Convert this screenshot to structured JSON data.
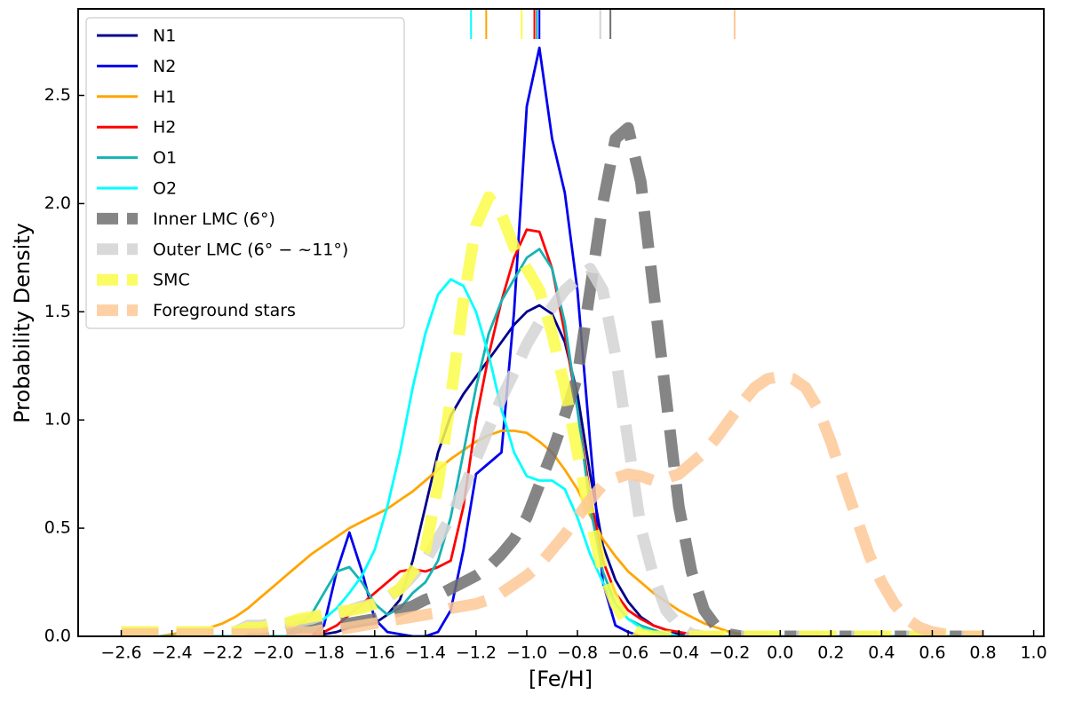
{
  "chart_data": {
    "type": "line",
    "xlabel": "[Fe/H]",
    "ylabel": "Probability Density",
    "xlim": [
      -2.77,
      1.04
    ],
    "ylim": [
      0,
      2.9
    ],
    "xticks": [
      {
        "value": -2.6,
        "label": "−2.6"
      },
      {
        "value": -2.4,
        "label": "−2.4"
      },
      {
        "value": -2.2,
        "label": "−2.2"
      },
      {
        "value": -2.0,
        "label": "−2.0"
      },
      {
        "value": -1.8,
        "label": "−1.8"
      },
      {
        "value": -1.6,
        "label": "−1.6"
      },
      {
        "value": -1.4,
        "label": "−1.4"
      },
      {
        "value": -1.2,
        "label": "−1.2"
      },
      {
        "value": -1.0,
        "label": "−1.0"
      },
      {
        "value": -0.8,
        "label": "−0.8"
      },
      {
        "value": -0.6,
        "label": "−0.6"
      },
      {
        "value": -0.4,
        "label": "−0.4"
      },
      {
        "value": -0.2,
        "label": "−0.2"
      },
      {
        "value": 0,
        "label": "0.0"
      },
      0.2,
      0.4,
      0.6,
      0.8,
      {
        "value": 1,
        "label": "1.0"
      }
    ],
    "yticks": [
      {
        "value": 0,
        "label": "0.0"
      },
      0.5,
      {
        "value": 1,
        "label": "1.0"
      },
      1.5,
      {
        "value": 2,
        "label": "2.0"
      },
      2.5
    ],
    "legend": "upper left",
    "x": [
      -2.6,
      -2.55,
      -2.5,
      -2.45,
      -2.4,
      -2.35,
      -2.3,
      -2.25,
      -2.2,
      -2.15,
      -2.1,
      -2.05,
      -2.0,
      -1.95,
      -1.9,
      -1.85,
      -1.8,
      -1.75,
      -1.7,
      -1.65,
      -1.6,
      -1.55,
      -1.5,
      -1.45,
      -1.4,
      -1.35,
      -1.3,
      -1.25,
      -1.2,
      -1.15,
      -1.1,
      -1.05,
      -1.0,
      -0.95,
      -0.9,
      -0.85,
      -0.8,
      -0.75,
      -0.7,
      -0.65,
      -0.6,
      -0.55,
      -0.5,
      -0.45,
      -0.4,
      -0.35,
      -0.3,
      -0.25,
      -0.2,
      -0.15,
      -0.1,
      -0.05,
      0,
      0.05,
      0.1,
      0.15,
      0.2,
      0.25,
      0.3,
      0.35,
      0.4,
      0.45,
      0.5,
      0.55,
      0.6,
      0.65,
      0.7,
      0.75,
      0.8
    ],
    "series": [
      {
        "name": "N1",
        "color": "#00008b",
        "style": "solid",
        "mean": -0.96,
        "values": [
          0,
          0,
          0,
          0,
          0,
          0,
          0,
          0,
          0,
          0,
          0,
          0,
          0,
          0,
          0,
          0,
          0.01,
          0.02,
          0.04,
          0.05,
          0.06,
          0.1,
          0.17,
          0.35,
          0.6,
          0.85,
          1.02,
          1.12,
          1.2,
          1.28,
          1.36,
          1.44,
          1.5,
          1.53,
          1.49,
          1.36,
          1.12,
          0.75,
          0.42,
          0.26,
          0.16,
          0.09,
          0.05,
          0.03,
          0.01,
          0,
          0,
          0,
          0,
          0,
          0,
          0,
          0,
          0,
          0,
          0,
          0,
          0,
          0,
          0,
          0,
          0,
          0,
          0,
          0,
          0,
          0,
          0,
          0
        ]
      },
      {
        "name": "N2",
        "color": "#0000ee",
        "style": "solid",
        "mean": -0.95,
        "values": [
          0,
          0,
          0,
          0,
          0,
          0,
          0,
          0,
          0,
          0,
          0,
          0,
          0,
          0,
          0,
          0,
          0.05,
          0.3,
          0.48,
          0.3,
          0.08,
          0.02,
          0.01,
          0,
          0,
          0.02,
          0.12,
          0.4,
          0.75,
          0.8,
          0.85,
          1.5,
          2.45,
          2.72,
          2.3,
          2.05,
          1.6,
          0.9,
          0.25,
          0.05,
          0.02,
          0,
          0,
          0,
          0,
          0,
          0,
          0,
          0,
          0,
          0,
          0,
          0,
          0,
          0,
          0,
          0,
          0,
          0,
          0,
          0,
          0,
          0,
          0,
          0,
          0,
          0,
          0,
          0
        ]
      },
      {
        "name": "H1",
        "color": "#ffa500",
        "style": "solid",
        "mean": -1.16,
        "values": [
          0,
          0,
          0,
          0,
          0.01,
          0.02,
          0.03,
          0.04,
          0.06,
          0.09,
          0.13,
          0.18,
          0.23,
          0.28,
          0.33,
          0.38,
          0.42,
          0.46,
          0.5,
          0.53,
          0.56,
          0.59,
          0.63,
          0.67,
          0.72,
          0.77,
          0.82,
          0.86,
          0.9,
          0.93,
          0.95,
          0.95,
          0.94,
          0.9,
          0.85,
          0.77,
          0.68,
          0.56,
          0.45,
          0.37,
          0.3,
          0.25,
          0.2,
          0.16,
          0.12,
          0.09,
          0.06,
          0.04,
          0.02,
          0.01,
          0.01,
          0,
          0,
          0,
          0,
          0,
          0,
          0,
          0,
          0,
          0,
          0,
          0,
          0,
          0,
          0,
          0,
          0,
          0
        ]
      },
      {
        "name": "H2",
        "color": "#ff0000",
        "style": "solid",
        "mean": -0.97,
        "values": [
          0,
          0,
          0,
          0,
          0,
          0,
          0,
          0,
          0,
          0,
          0,
          0,
          0,
          0,
          0,
          0,
          0.02,
          0.05,
          0.1,
          0.15,
          0.2,
          0.25,
          0.3,
          0.31,
          0.3,
          0.32,
          0.35,
          0.6,
          1.0,
          1.3,
          1.55,
          1.75,
          1.88,
          1.87,
          1.7,
          1.4,
          1.05,
          0.65,
          0.35,
          0.2,
          0.12,
          0.08,
          0.05,
          0.03,
          0.02,
          0.01,
          0,
          0,
          0,
          0,
          0,
          0,
          0,
          0,
          0,
          0,
          0,
          0,
          0,
          0,
          0,
          0,
          0,
          0,
          0,
          0,
          0,
          0,
          0
        ]
      },
      {
        "name": "O1",
        "color": "#17b3b3",
        "style": "solid",
        "mean": -0.96,
        "values": [
          0,
          0,
          0,
          0,
          0,
          0,
          0,
          0,
          0,
          0,
          0,
          0,
          0,
          0,
          0.05,
          0.1,
          0.2,
          0.3,
          0.32,
          0.25,
          0.15,
          0.1,
          0.13,
          0.2,
          0.25,
          0.35,
          0.55,
          0.85,
          1.15,
          1.4,
          1.55,
          1.65,
          1.75,
          1.79,
          1.7,
          1.45,
          1.05,
          0.6,
          0.3,
          0.15,
          0.08,
          0.05,
          0.03,
          0.01,
          0,
          0,
          0,
          0,
          0,
          0,
          0,
          0,
          0,
          0,
          0,
          0,
          0,
          0,
          0,
          0,
          0,
          0,
          0,
          0,
          0,
          0,
          0,
          0,
          0
        ]
      },
      {
        "name": "O2",
        "color": "#00ffff",
        "style": "solid",
        "mean": -1.22,
        "values": [
          0,
          0,
          0,
          0,
          0,
          0,
          0,
          0,
          0,
          0,
          0,
          0,
          0,
          0,
          0.02,
          0.05,
          0.08,
          0.13,
          0.2,
          0.28,
          0.4,
          0.6,
          0.85,
          1.15,
          1.4,
          1.58,
          1.65,
          1.62,
          1.5,
          1.3,
          1.05,
          0.85,
          0.74,
          0.72,
          0.72,
          0.68,
          0.55,
          0.38,
          0.25,
          0.15,
          0.08,
          0.04,
          0.02,
          0.01,
          0,
          0,
          0,
          0,
          0,
          0,
          0,
          0,
          0,
          0,
          0,
          0,
          0,
          0,
          0,
          0,
          0,
          0,
          0,
          0,
          0,
          0,
          0,
          0,
          0
        ]
      },
      {
        "name": "Inner LMC (6°)",
        "color": "#707070",
        "style": "dashed",
        "mean": -0.67,
        "values": [
          0.01,
          0.01,
          0.01,
          0.01,
          0.01,
          0.01,
          0.01,
          0.01,
          0.01,
          0.01,
          0.02,
          0.02,
          0.03,
          0.03,
          0.04,
          0.04,
          0.05,
          0.06,
          0.06,
          0.07,
          0.08,
          0.1,
          0.12,
          0.14,
          0.17,
          0.19,
          0.22,
          0.25,
          0.28,
          0.32,
          0.38,
          0.45,
          0.55,
          0.7,
          0.85,
          1.02,
          1.2,
          1.6,
          2.0,
          2.3,
          2.35,
          2.1,
          1.6,
          1.1,
          0.6,
          0.3,
          0.12,
          0.04,
          0.01,
          0,
          0,
          0,
          0,
          0,
          0,
          0,
          0,
          0,
          0,
          0,
          0,
          0,
          0,
          0,
          0,
          0,
          0,
          0,
          0
        ]
      },
      {
        "name": "Outer LMC (6° − ~11°)",
        "color": "#d3d3d3",
        "style": "dashed",
        "mean": -0.71,
        "values": [
          0.02,
          0.02,
          0.02,
          0.02,
          0.02,
          0.02,
          0.02,
          0.02,
          0.02,
          0.02,
          0.05,
          0.05,
          0.06,
          0.06,
          0.07,
          0.08,
          0.1,
          0.11,
          0.12,
          0.14,
          0.15,
          0.18,
          0.22,
          0.28,
          0.35,
          0.45,
          0.55,
          0.68,
          0.82,
          0.96,
          1.1,
          1.22,
          1.35,
          1.45,
          1.52,
          1.6,
          1.65,
          1.7,
          1.6,
          1.3,
          0.9,
          0.5,
          0.28,
          0.12,
          0.05,
          0.01,
          0,
          0,
          0,
          0,
          0,
          0,
          0,
          0,
          0,
          0,
          0,
          0,
          0,
          0,
          0,
          0,
          0,
          0,
          0,
          0,
          0,
          0,
          0
        ]
      },
      {
        "name": "SMC",
        "color": "#fbfb4a",
        "style": "dashed",
        "mean": -1.02,
        "values": [
          0.02,
          0.02,
          0.02,
          0.02,
          0.02,
          0.02,
          0.02,
          0.02,
          0.02,
          0.02,
          0.04,
          0.04,
          0.05,
          0.06,
          0.08,
          0.09,
          0.1,
          0.11,
          0.12,
          0.13,
          0.15,
          0.18,
          0.22,
          0.3,
          0.4,
          0.7,
          1.1,
          1.55,
          1.9,
          2.03,
          1.95,
          1.8,
          1.7,
          1.6,
          1.4,
          1.15,
          0.85,
          0.55,
          0.3,
          0.15,
          0.05,
          0.01,
          0,
          0,
          0,
          0,
          0,
          0,
          0,
          0,
          0,
          0,
          0,
          0,
          0,
          0,
          0,
          0,
          0,
          0,
          0,
          0,
          0,
          0,
          0,
          0,
          0,
          0,
          0
        ]
      },
      {
        "name": "Foreground stars",
        "color": "#fdc896",
        "style": "dashed",
        "mean": -0.18,
        "values": [
          0.01,
          0.01,
          0.01,
          0.01,
          0.01,
          0.01,
          0.01,
          0.01,
          0.01,
          0.01,
          0.01,
          0.01,
          0.02,
          0.02,
          0.02,
          0.02,
          0.03,
          0.03,
          0.04,
          0.05,
          0.06,
          0.07,
          0.08,
          0.09,
          0.1,
          0.11,
          0.13,
          0.14,
          0.15,
          0.17,
          0.2,
          0.24,
          0.28,
          0.33,
          0.4,
          0.47,
          0.55,
          0.63,
          0.7,
          0.73,
          0.75,
          0.74,
          0.72,
          0.73,
          0.75,
          0.8,
          0.85,
          0.92,
          1.0,
          1.08,
          1.15,
          1.19,
          1.2,
          1.19,
          1.15,
          1.05,
          0.9,
          0.72,
          0.55,
          0.38,
          0.25,
          0.15,
          0.08,
          0.04,
          0.02,
          0.01,
          0,
          0,
          0
        ]
      }
    ]
  }
}
